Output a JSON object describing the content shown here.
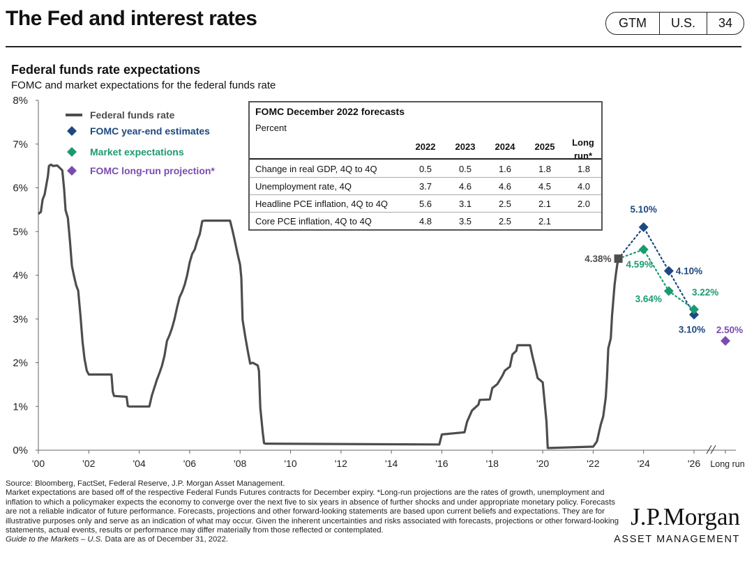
{
  "header": {
    "title": "The Fed and interest rates",
    "badges": [
      "GTM",
      "U.S.",
      "34"
    ]
  },
  "chart_heading": {
    "title": "Federal funds rate expectations",
    "subtitle": "FOMC and market expectations for the federal funds rate"
  },
  "chart_data": {
    "type": "line",
    "y_unit": "%",
    "ylim": [
      0,
      8
    ],
    "y_ticks": [
      0,
      1,
      2,
      3,
      4,
      5,
      6,
      7,
      8
    ],
    "y_tick_labels": [
      "0%",
      "1%",
      "2%",
      "3%",
      "4%",
      "5%",
      "6%",
      "7%",
      "8%"
    ],
    "xlim": [
      2000,
      2027
    ],
    "x_ticks": [
      2000,
      2002,
      2004,
      2006,
      2008,
      2010,
      2012,
      2014,
      2016,
      2018,
      2020,
      2022,
      2024,
      2026
    ],
    "x_tick_labels": [
      "'00",
      "'02",
      "'04",
      "'06",
      "'08",
      "'10",
      "'12",
      "'14",
      "'16",
      "'18",
      "'20",
      "'22",
      "'24",
      "'26"
    ],
    "long_run_label": "Long run",
    "grid": false,
    "legend_position": "top-left",
    "colors": {
      "fed_funds": "#4d4d4f",
      "fomc": "#1d4880",
      "market": "#1a9a72",
      "long_run": "#7b4bb0"
    },
    "series": [
      {
        "name": "Federal funds rate",
        "kind": "line",
        "color": "#4d4d4f",
        "points": [
          [
            2000.0,
            5.4
          ],
          [
            2000.1,
            5.45
          ],
          [
            2000.17,
            5.73
          ],
          [
            2000.25,
            5.85
          ],
          [
            2000.38,
            6.27
          ],
          [
            2000.42,
            6.5
          ],
          [
            2000.5,
            6.53
          ],
          [
            2000.58,
            6.5
          ],
          [
            2000.75,
            6.51
          ],
          [
            2000.95,
            6.4
          ],
          [
            2001.02,
            5.98
          ],
          [
            2001.08,
            5.49
          ],
          [
            2001.17,
            5.31
          ],
          [
            2001.25,
            4.8
          ],
          [
            2001.33,
            4.21
          ],
          [
            2001.42,
            3.97
          ],
          [
            2001.5,
            3.77
          ],
          [
            2001.58,
            3.65
          ],
          [
            2001.67,
            3.07
          ],
          [
            2001.75,
            2.49
          ],
          [
            2001.83,
            2.09
          ],
          [
            2001.92,
            1.82
          ],
          [
            2002.0,
            1.73
          ],
          [
            2002.9,
            1.73
          ],
          [
            2002.95,
            1.34
          ],
          [
            2003.0,
            1.24
          ],
          [
            2003.5,
            1.22
          ],
          [
            2003.55,
            1.01
          ],
          [
            2003.6,
            1.0
          ],
          [
            2004.4,
            1.0
          ],
          [
            2004.5,
            1.25
          ],
          [
            2004.6,
            1.43
          ],
          [
            2004.7,
            1.61
          ],
          [
            2004.8,
            1.76
          ],
          [
            2004.9,
            1.93
          ],
          [
            2005.0,
            2.16
          ],
          [
            2005.1,
            2.5
          ],
          [
            2005.2,
            2.63
          ],
          [
            2005.3,
            2.79
          ],
          [
            2005.4,
            3.0
          ],
          [
            2005.5,
            3.26
          ],
          [
            2005.6,
            3.5
          ],
          [
            2005.7,
            3.62
          ],
          [
            2005.8,
            3.78
          ],
          [
            2005.9,
            4.0
          ],
          [
            2006.0,
            4.29
          ],
          [
            2006.1,
            4.49
          ],
          [
            2006.2,
            4.59
          ],
          [
            2006.3,
            4.79
          ],
          [
            2006.4,
            4.94
          ],
          [
            2006.5,
            5.24
          ],
          [
            2006.6,
            5.25
          ],
          [
            2007.6,
            5.25
          ],
          [
            2007.7,
            5.02
          ],
          [
            2007.8,
            4.76
          ],
          [
            2007.9,
            4.49
          ],
          [
            2008.0,
            4.24
          ],
          [
            2008.05,
            3.94
          ],
          [
            2008.1,
            2.98
          ],
          [
            2008.2,
            2.61
          ],
          [
            2008.3,
            2.28
          ],
          [
            2008.4,
            1.98
          ],
          [
            2008.5,
            2.0
          ],
          [
            2008.7,
            1.94
          ],
          [
            2008.75,
            1.81
          ],
          [
            2008.8,
            0.97
          ],
          [
            2008.9,
            0.39
          ],
          [
            2008.95,
            0.16
          ],
          [
            2009.0,
            0.15
          ],
          [
            2015.9,
            0.13
          ],
          [
            2016.0,
            0.36
          ],
          [
            2016.9,
            0.41
          ],
          [
            2017.0,
            0.65
          ],
          [
            2017.2,
            0.91
          ],
          [
            2017.45,
            1.04
          ],
          [
            2017.5,
            1.15
          ],
          [
            2017.9,
            1.16
          ],
          [
            2018.0,
            1.42
          ],
          [
            2018.2,
            1.51
          ],
          [
            2018.4,
            1.7
          ],
          [
            2018.5,
            1.82
          ],
          [
            2018.7,
            1.91
          ],
          [
            2018.8,
            2.19
          ],
          [
            2018.95,
            2.27
          ],
          [
            2019.0,
            2.4
          ],
          [
            2019.5,
            2.4
          ],
          [
            2019.6,
            2.13
          ],
          [
            2019.7,
            1.9
          ],
          [
            2019.8,
            1.65
          ],
          [
            2020.0,
            1.55
          ],
          [
            2020.15,
            0.65
          ],
          [
            2020.2,
            0.05
          ],
          [
            2020.25,
            0.05
          ],
          [
            2021.9,
            0.08
          ],
          [
            2022.0,
            0.08
          ],
          [
            2022.15,
            0.2
          ],
          [
            2022.3,
            0.58
          ],
          [
            2022.4,
            0.77
          ],
          [
            2022.5,
            1.21
          ],
          [
            2022.55,
            1.68
          ],
          [
            2022.6,
            2.33
          ],
          [
            2022.7,
            2.56
          ],
          [
            2022.75,
            3.08
          ],
          [
            2022.85,
            3.78
          ],
          [
            2022.92,
            4.1
          ],
          [
            2022.98,
            4.33
          ]
        ]
      },
      {
        "name": "FOMC year-end estimates",
        "kind": "markers",
        "color": "#1d4880",
        "points": [
          [
            2023.0,
            4.38
          ],
          [
            2024.0,
            5.1
          ],
          [
            2025.0,
            4.1
          ],
          [
            2026.0,
            3.1
          ]
        ],
        "labels": [
          "4.38%",
          "5.10%",
          "4.10%",
          "3.10%"
        ]
      },
      {
        "name": "Market expectations",
        "kind": "markers",
        "color": "#1a9a72",
        "points": [
          [
            2023.0,
            4.38
          ],
          [
            2024.0,
            4.59
          ],
          [
            2025.0,
            3.64
          ],
          [
            2026.0,
            3.22
          ]
        ],
        "labels": [
          "",
          "4.59%",
          "3.64%",
          "3.22%"
        ]
      },
      {
        "name": "FOMC long-run projection*",
        "kind": "markers",
        "color": "#7b4bb0",
        "points": [
          [
            2027.0,
            2.5
          ]
        ],
        "labels": [
          "2.50%"
        ]
      }
    ]
  },
  "legend": [
    {
      "label": "Federal funds rate",
      "color": "#4d4d4f",
      "marker": "line"
    },
    {
      "label": "FOMC year-end estimates",
      "color": "#1d4880",
      "marker": "diamond"
    },
    {
      "label": "Market expectations",
      "color": "#1a9a72",
      "marker": "diamond"
    },
    {
      "label": "FOMC long-run projection*",
      "color": "#7b4bb0",
      "marker": "diamond"
    }
  ],
  "forecast_table": {
    "title": "FOMC December 2022 forecasts",
    "unit": "Percent",
    "columns": [
      "2022",
      "2023",
      "2024",
      "2025",
      "Long run*"
    ],
    "rows": [
      {
        "label": "Change in real GDP, 4Q to 4Q",
        "values": [
          "0.5",
          "0.5",
          "1.6",
          "1.8",
          "1.8"
        ]
      },
      {
        "label": "Unemployment rate, 4Q",
        "values": [
          "3.7",
          "4.6",
          "4.6",
          "4.5",
          "4.0"
        ]
      },
      {
        "label": "Headline PCE inflation, 4Q to 4Q",
        "values": [
          "5.6",
          "3.1",
          "2.5",
          "2.1",
          "2.0"
        ]
      },
      {
        "label": "Core PCE inflation, 4Q to 4Q",
        "values": [
          "4.8",
          "3.5",
          "2.5",
          "2.1",
          ""
        ]
      }
    ]
  },
  "footer": {
    "source": "Source: Bloomberg, FactSet, Federal Reserve, J.P. Morgan Asset Management.",
    "disclaimer": "Market expectations are based off of the respective Federal Funds Futures contracts for December expiry. *Long-run projections are the rates of growth, unemployment and inflation to which a policymaker expects the economy to converge over the next five to six years in absence of further shocks and under appropriate monetary policy. Forecasts are not a reliable indicator of future performance. Forecasts, projections and other forward-looking statements are based upon current beliefs and expectations. They are for illustrative purposes only and serve as an indication of what may occur. Given the inherent uncertainties and risks associated with forecasts, projections or other forward-looking statements, actual events, results or performance may differ materially from those reflected or contemplated.",
    "guide_title": "Guide to the Markets – U.S.",
    "as_of": " Data are as of December 31, 2022."
  },
  "logo": {
    "main": "J.P.Morgan",
    "sub": "ASSET MANAGEMENT"
  }
}
